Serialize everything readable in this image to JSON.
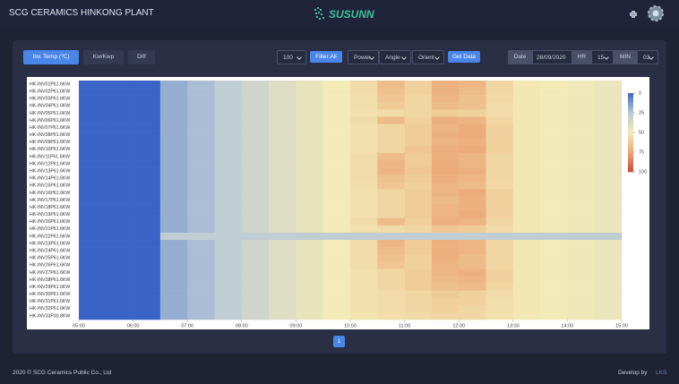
{
  "header": {
    "title": "SCG CERAMICS HINKONG PLANT",
    "logo": "SUSUNN"
  },
  "controls": {
    "tabs": [
      "Inv. Temp (℃)",
      "Kw/Kwp",
      "Diff"
    ],
    "limit": "100",
    "filter": "Filter:All",
    "selects": [
      "Power",
      "Angle",
      "Orient"
    ],
    "get_data": "Get Data",
    "date_label": "Date",
    "date": "28/09/2020",
    "hr_value": "15",
    "hr_label": "HR",
    "min_label": "MIN",
    "min_value": "03"
  },
  "chart_data": {
    "type": "heatmap",
    "rows": [
      "HK-INV01P61.6KW",
      "HK-INV02P61.6KW",
      "HK-INV03P61.6KW",
      "HK-INV04P61.6KW",
      "HK-INV05P61.6KW",
      "HK-INV06P61.6KW",
      "HK-INV07P61.6KW",
      "HK-INV08P61.6KW",
      "HK-INV09P61.6KW",
      "HK-INV10P61.6KW",
      "HK-INV11P61.6KW",
      "HK-INV12P61.6KW",
      "HK-INV13P61.6KW",
      "HK-INV14P61.6KW",
      "HK-INV15P61.6KW",
      "HK-INV16P61.6KW",
      "HK-INV17P61.6KW",
      "HK-INV18P61.6KW",
      "HK-INV19P61.6KW",
      "HK-INV20P61.6KW",
      "HK-INV21P61.6KW",
      "HK-INV22P61.6KW",
      "HK-INV23P61.6KW",
      "HK-INV24P61.6KW",
      "HK-INV25P61.6KW",
      "HK-INV26P61.6KW",
      "HK-INV27P61.6KW",
      "HK-INV28P61.6KW",
      "HK-INV29P61.6KW",
      "HK-INV30P61.6KW",
      "HK-INV31P61.6KW",
      "HK-INV32P61.6KW",
      "HK-INV33P30.8KW"
    ],
    "x": [
      5,
      5.5,
      6,
      6.5,
      7,
      7.5,
      8,
      8.5,
      9,
      9.5,
      10,
      10.5,
      11,
      11.5,
      12,
      12.5,
      13,
      13.5,
      14,
      14.5
    ],
    "xlim": [
      5,
      15
    ],
    "xticks": [
      {
        "value": 5,
        "label": "05:00"
      },
      {
        "value": 6,
        "label": "06:00"
      },
      {
        "value": 7,
        "label": "07:00"
      },
      {
        "value": 8,
        "label": "08:00"
      },
      {
        "value": 9,
        "label": "09:00"
      },
      {
        "value": 10,
        "label": "10:00"
      },
      {
        "value": 11,
        "label": "11:00"
      },
      {
        "value": 12,
        "label": "12:00"
      },
      {
        "value": 13,
        "label": "13:00"
      },
      {
        "value": 14,
        "label": "14:00"
      },
      {
        "value": 15,
        "label": "15:00"
      }
    ],
    "zlim": [
      0,
      100
    ],
    "colorbar_ticks": [
      0,
      25,
      50,
      75,
      100
    ],
    "colorscale": [
      "#3b64c9",
      "#b9c9d6",
      "#f3ebb7",
      "#eba877",
      "#cc4a3a"
    ],
    "values": [
      [
        0,
        0,
        0,
        18,
        22,
        28,
        34,
        40,
        45,
        50,
        56,
        68,
        60,
        72,
        70,
        58,
        52,
        50,
        48,
        46
      ],
      [
        0,
        0,
        0,
        18,
        22,
        28,
        34,
        40,
        45,
        50,
        56,
        66,
        60,
        72,
        68,
        58,
        52,
        50,
        48,
        46
      ],
      [
        0,
        0,
        0,
        18,
        22,
        28,
        34,
        40,
        45,
        50,
        55,
        64,
        58,
        70,
        66,
        57,
        52,
        50,
        48,
        46
      ],
      [
        0,
        0,
        0,
        18,
        22,
        28,
        34,
        40,
        45,
        50,
        55,
        62,
        58,
        68,
        66,
        56,
        52,
        50,
        48,
        46
      ],
      [
        0,
        0,
        0,
        18,
        22,
        28,
        34,
        40,
        45,
        50,
        54,
        56,
        58,
        62,
        60,
        56,
        52,
        50,
        48,
        46
      ],
      [
        0,
        0,
        0,
        18,
        22,
        28,
        34,
        40,
        45,
        50,
        56,
        68,
        60,
        72,
        70,
        58,
        52,
        50,
        48,
        46
      ],
      [
        0,
        0,
        0,
        18,
        22,
        28,
        34,
        40,
        45,
        50,
        54,
        58,
        62,
        70,
        74,
        60,
        52,
        50,
        48,
        46
      ],
      [
        0,
        0,
        0,
        18,
        22,
        28,
        34,
        40,
        45,
        50,
        54,
        58,
        62,
        72,
        74,
        60,
        52,
        50,
        48,
        46
      ],
      [
        0,
        0,
        0,
        18,
        22,
        28,
        34,
        40,
        45,
        50,
        54,
        58,
        62,
        70,
        72,
        60,
        52,
        50,
        48,
        46
      ],
      [
        0,
        0,
        0,
        18,
        22,
        28,
        34,
        40,
        45,
        50,
        54,
        58,
        64,
        72,
        74,
        60,
        52,
        50,
        48,
        46
      ],
      [
        0,
        0,
        0,
        18,
        22,
        28,
        34,
        40,
        45,
        50,
        56,
        68,
        62,
        72,
        70,
        58,
        52,
        50,
        48,
        46
      ],
      [
        0,
        0,
        0,
        18,
        22,
        28,
        34,
        40,
        45,
        50,
        56,
        70,
        62,
        74,
        70,
        58,
        52,
        50,
        48,
        46
      ],
      [
        0,
        0,
        0,
        18,
        22,
        28,
        34,
        40,
        45,
        50,
        56,
        70,
        64,
        74,
        72,
        58,
        52,
        50,
        48,
        46
      ],
      [
        0,
        0,
        0,
        18,
        22,
        28,
        34,
        40,
        45,
        50,
        56,
        66,
        62,
        72,
        70,
        58,
        52,
        50,
        48,
        46
      ],
      [
        0,
        0,
        0,
        18,
        22,
        28,
        34,
        40,
        45,
        50,
        55,
        64,
        60,
        70,
        68,
        57,
        52,
        50,
        48,
        46
      ],
      [
        0,
        0,
        0,
        18,
        22,
        28,
        34,
        40,
        45,
        50,
        54,
        58,
        62,
        70,
        74,
        60,
        52,
        50,
        48,
        46
      ],
      [
        0,
        0,
        0,
        18,
        22,
        28,
        34,
        40,
        45,
        50,
        54,
        58,
        62,
        68,
        72,
        60,
        52,
        50,
        48,
        46
      ],
      [
        0,
        0,
        0,
        18,
        22,
        28,
        34,
        40,
        45,
        50,
        54,
        58,
        62,
        70,
        72,
        60,
        52,
        50,
        48,
        46
      ],
      [
        0,
        0,
        0,
        18,
        22,
        28,
        34,
        40,
        45,
        50,
        54,
        58,
        62,
        70,
        74,
        60,
        52,
        50,
        48,
        46
      ],
      [
        0,
        0,
        0,
        18,
        22,
        28,
        34,
        40,
        45,
        50,
        56,
        68,
        60,
        72,
        70,
        58,
        52,
        50,
        48,
        46
      ],
      [
        0,
        0,
        0,
        18,
        22,
        28,
        34,
        40,
        45,
        50,
        54,
        56,
        58,
        64,
        62,
        56,
        52,
        50,
        48,
        46
      ],
      [
        0,
        0,
        0,
        28,
        28,
        28,
        28,
        28,
        28,
        28,
        28,
        28,
        28,
        28,
        28,
        28,
        28,
        28,
        28,
        28
      ],
      [
        0,
        0,
        0,
        18,
        22,
        28,
        34,
        40,
        45,
        50,
        56,
        70,
        62,
        72,
        70,
        58,
        52,
        50,
        48,
        46
      ],
      [
        0,
        0,
        0,
        18,
        22,
        28,
        34,
        40,
        45,
        50,
        56,
        68,
        62,
        72,
        70,
        58,
        52,
        50,
        48,
        46
      ],
      [
        0,
        0,
        0,
        18,
        22,
        28,
        34,
        40,
        45,
        50,
        56,
        66,
        60,
        72,
        68,
        58,
        52,
        50,
        48,
        46
      ],
      [
        0,
        0,
        0,
        18,
        22,
        28,
        34,
        40,
        45,
        50,
        56,
        64,
        60,
        70,
        68,
        58,
        52,
        50,
        48,
        46
      ],
      [
        0,
        0,
        0,
        18,
        22,
        28,
        34,
        40,
        45,
        50,
        54,
        58,
        62,
        70,
        72,
        60,
        52,
        50,
        48,
        46
      ],
      [
        0,
        0,
        0,
        18,
        22,
        28,
        34,
        40,
        45,
        50,
        54,
        58,
        62,
        68,
        70,
        60,
        52,
        50,
        48,
        46
      ],
      [
        0,
        0,
        0,
        18,
        22,
        28,
        34,
        40,
        45,
        50,
        54,
        58,
        62,
        66,
        68,
        58,
        52,
        50,
        48,
        46
      ],
      [
        0,
        0,
        0,
        18,
        22,
        28,
        34,
        40,
        45,
        50,
        54,
        56,
        58,
        62,
        60,
        56,
        52,
        50,
        48,
        46
      ],
      [
        0,
        0,
        0,
        18,
        22,
        28,
        34,
        40,
        45,
        50,
        54,
        56,
        58,
        60,
        60,
        55,
        52,
        50,
        48,
        46
      ],
      [
        0,
        0,
        0,
        18,
        22,
        28,
        34,
        40,
        45,
        50,
        54,
        56,
        58,
        60,
        58,
        55,
        52,
        50,
        48,
        46
      ],
      [
        0,
        0,
        0,
        18,
        22,
        28,
        34,
        40,
        45,
        50,
        53,
        55,
        56,
        58,
        58,
        54,
        51,
        50,
        48,
        46
      ]
    ]
  },
  "pagination": {
    "current": "1"
  },
  "footer": {
    "copyright": "2020 © SCG Ceramics Public Co., Ltd",
    "develop_by": "Develop by",
    "developer": "LKS"
  }
}
